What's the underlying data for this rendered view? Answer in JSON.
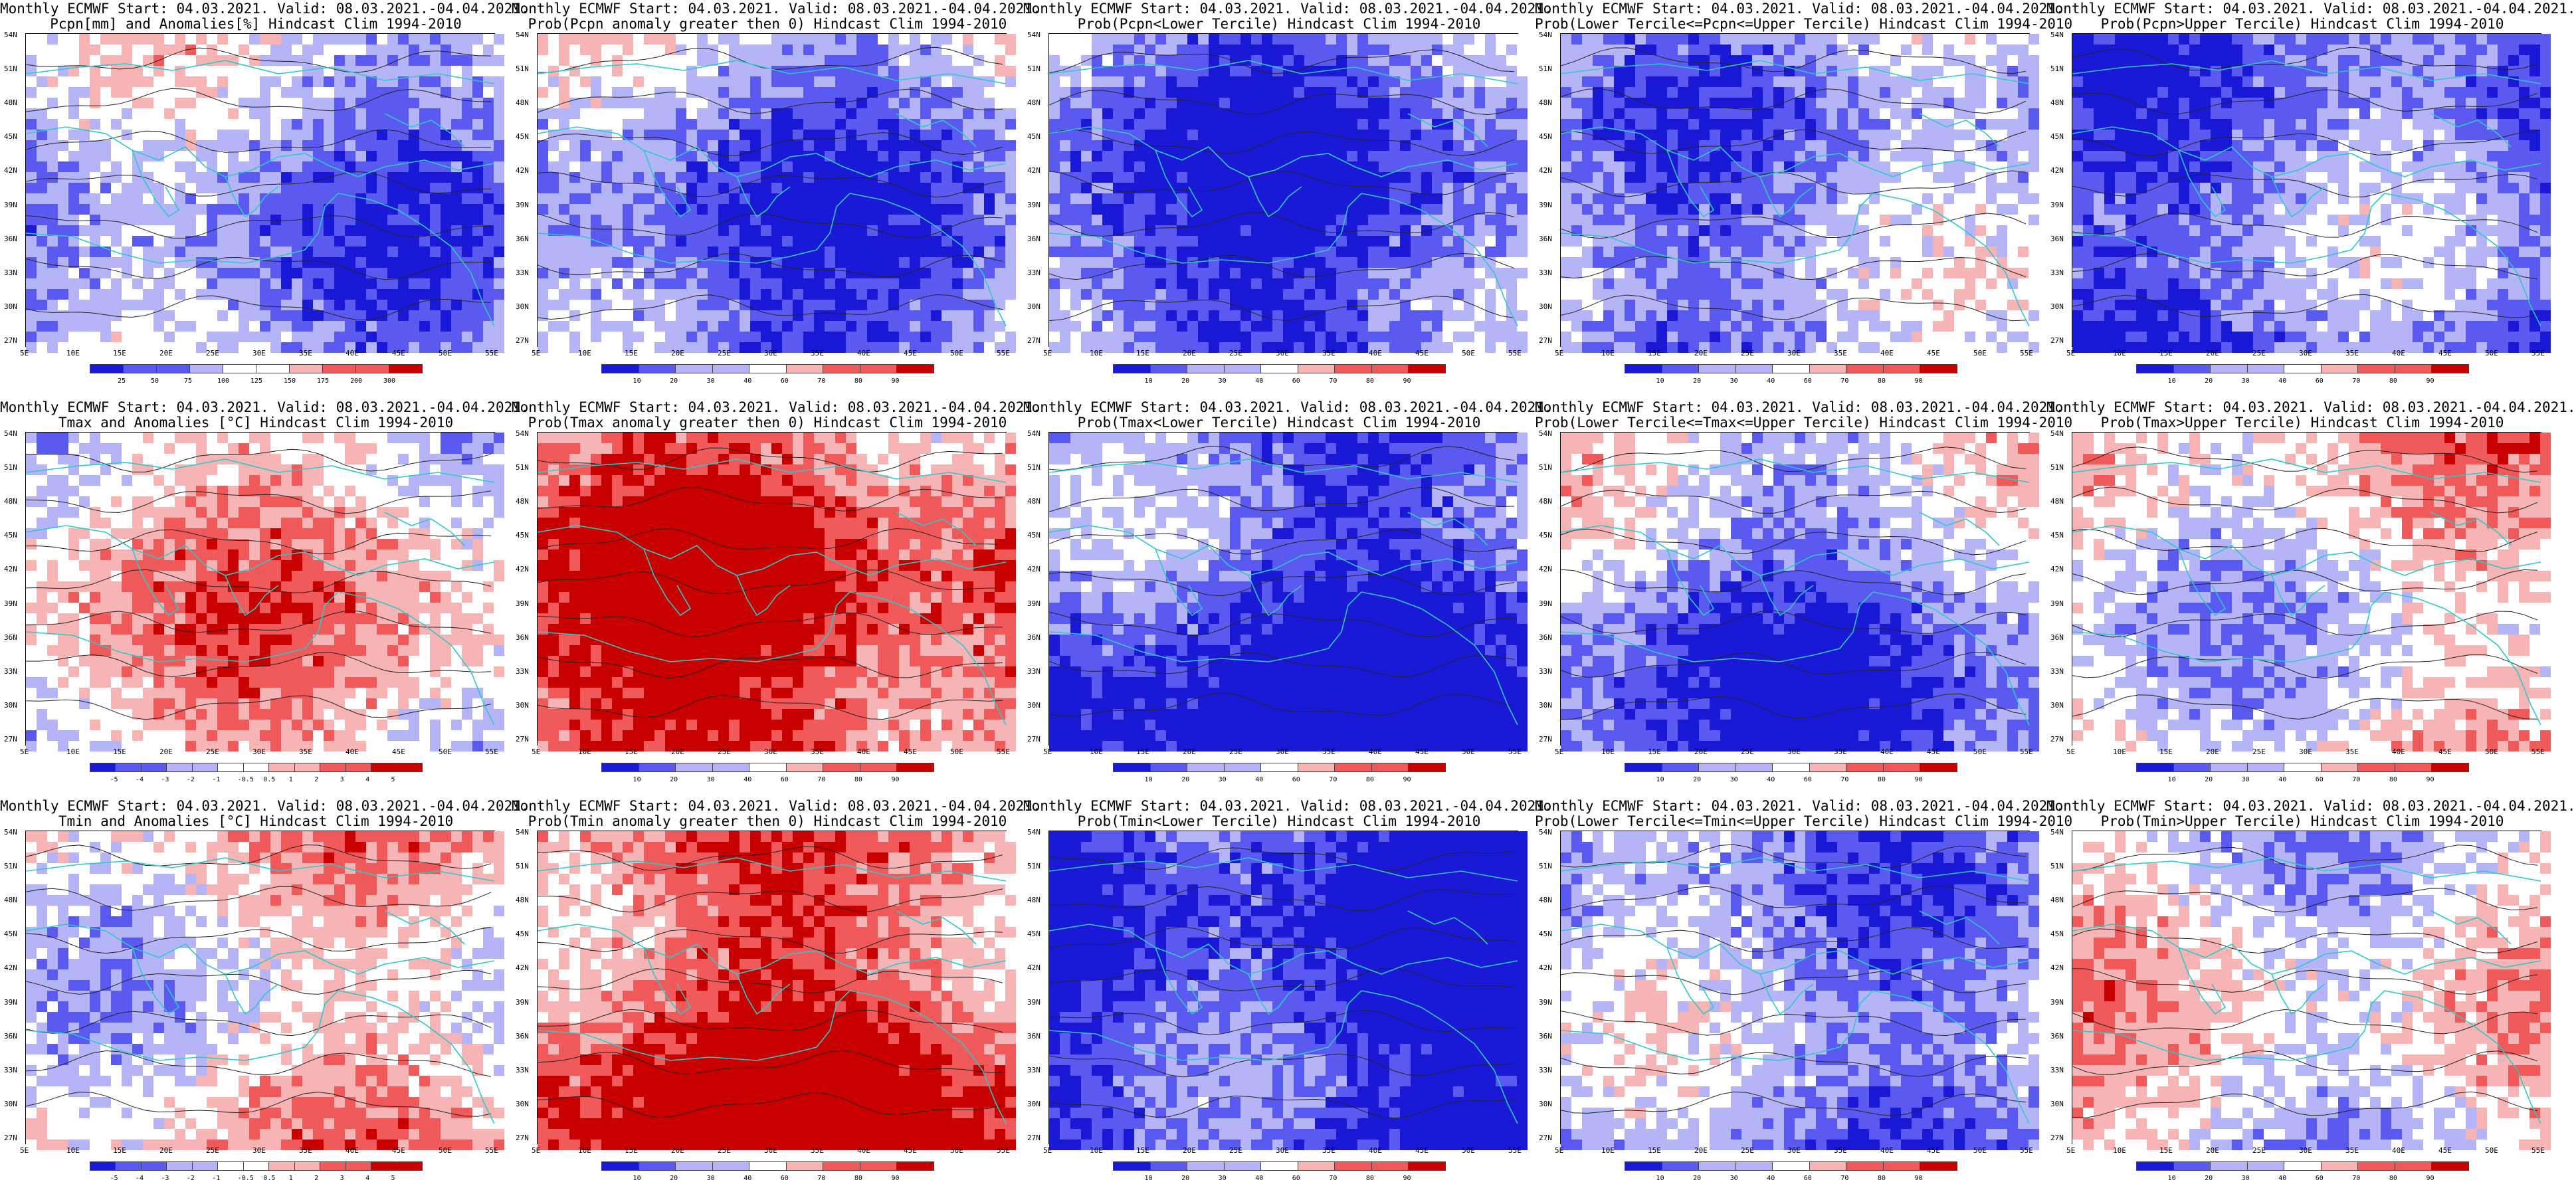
{
  "page_name": "ECMWF monthly forecast panel grid",
  "title_prefix": "Monthly ECMWF Start: 04.03.2021. Valid: 08.03.2021.-04.04.2021.",
  "lat_labels": [
    "54N",
    "51N",
    "48N",
    "45N",
    "42N",
    "39N",
    "36N",
    "33N",
    "30N",
    "27N"
  ],
  "lon_labels": [
    "5E",
    "10E",
    "15E",
    "20E",
    "25E",
    "30E",
    "35E",
    "40E",
    "45E",
    "50E",
    "55E"
  ],
  "prob_ticks": [
    "10",
    "20",
    "30",
    "40",
    "60",
    "70",
    "80",
    "90"
  ],
  "pcpn_ticks": [
    "25",
    "50",
    "75",
    "100",
    "125",
    "150",
    "175",
    "200",
    "300"
  ],
  "temp_ticks": [
    "-5",
    "-4",
    "-3",
    "-2",
    "-1",
    "-0.5",
    "0.5",
    "1",
    "2",
    "3",
    "4",
    "5"
  ],
  "colors": {
    "blue_dark": "#1a1ad6",
    "blue_mid": "#5a5af0",
    "blue_light": "#b4b4f7",
    "white": "#ffffff",
    "red_light": "#f7b4b4",
    "red_mid": "#f05a5a",
    "red_dark": "#c80000",
    "coast": "#2ec8c8",
    "contour": "#222222"
  },
  "panels": [
    {
      "id": "pcpn-anom",
      "line1": "Monthly ECMWF Start: 04.03.2021. Valid: 08.03.2021.-04.04.2021.",
      "line2": "Pcpn[mm] and Anomalies[%] Hindcast Clim 1994-2010",
      "scheme": "pcpn",
      "palette": "anomaly",
      "bias": -0.35
    },
    {
      "id": "pcpn-prob-gt0",
      "line1": "Monthly ECMWF Start: 04.03.2021. Valid: 08.03.2021.-04.04.2021.",
      "line2": "Prob(Pcpn anomaly greater then 0) Hindcast Clim 1994-2010",
      "scheme": "prob",
      "palette": "prob",
      "bias": -0.3
    },
    {
      "id": "pcpn-prob-lower",
      "line1": "Monthly ECMWF Start: 04.03.2021. Valid: 08.03.2021.-04.04.2021.",
      "line2": "Prob(Pcpn<Lower Tercile) Hindcast Clim 1994-2010",
      "scheme": "prob",
      "palette": "prob",
      "bias": -0.45
    },
    {
      "id": "pcpn-prob-middle",
      "line1": "Monthly ECMWF Start: 04.03.2021. Valid: 08.03.2021.-04.04.2021.",
      "line2": "Prob(Lower Tercile<=Pcpn<=Upper Tercile) Hindcast Clim 1994-2010",
      "scheme": "prob",
      "palette": "prob",
      "bias": -0.2
    },
    {
      "id": "pcpn-prob-upper",
      "line1": "Monthly ECMWF Start: 04.03.2021. Valid: 08.03.2021.-04.04.2021.",
      "line2": "Prob(Pcpn>Upper Tercile) Hindcast Clim 1994-2010",
      "scheme": "prob",
      "palette": "prob",
      "bias": -0.4
    },
    {
      "id": "tmax-anom",
      "line1": "Monthly ECMWF Start: 04.03.2021. Valid: 08.03.2021.-04.04.2021.",
      "line2": "Tmax and Anomalies [°C] Hindcast Clim 1994-2010",
      "scheme": "temp",
      "palette": "anomaly",
      "bias": 0.2
    },
    {
      "id": "tmax-prob-gt0",
      "line1": "Monthly ECMWF Start: 04.03.2021. Valid: 08.03.2021.-04.04.2021.",
      "line2": "Prob(Tmax anomaly greater then 0) Hindcast Clim 1994-2010",
      "scheme": "prob",
      "palette": "prob",
      "bias": 0.55
    },
    {
      "id": "tmax-prob-lower",
      "line1": "Monthly ECMWF Start: 04.03.2021. Valid: 08.03.2021.-04.04.2021.",
      "line2": "Prob(Tmax<Lower Tercile) Hindcast Clim 1994-2010",
      "scheme": "prob",
      "palette": "prob",
      "bias": -0.65
    },
    {
      "id": "tmax-prob-middle",
      "line1": "Monthly ECMWF Start: 04.03.2021. Valid: 08.03.2021.-04.04.2021.",
      "line2": "Prob(Lower Tercile<=Tmax<=Upper Tercile) Hindcast Clim 1994-2010",
      "scheme": "prob",
      "palette": "prob",
      "bias": -0.25
    },
    {
      "id": "tmax-prob-upper",
      "line1": "Monthly ECMWF Start: 04.03.2021. Valid: 08.03.2021.-04.04.2021.",
      "line2": "Prob(Tmax>Upper Tercile) Hindcast Clim 1994-2010",
      "scheme": "prob",
      "palette": "prob",
      "bias": 0.05
    },
    {
      "id": "tmin-anom",
      "line1": "Monthly ECMWF Start: 04.03.2021. Valid: 08.03.2021.-04.04.2021.",
      "line2": "Tmin and Anomalies [°C] Hindcast Clim 1994-2010",
      "scheme": "temp",
      "palette": "anomaly",
      "bias": 0.15
    },
    {
      "id": "tmin-prob-gt0",
      "line1": "Monthly ECMWF Start: 04.03.2021. Valid: 08.03.2021.-04.04.2021.",
      "line2": "Prob(Tmin anomaly greater then 0) Hindcast Clim 1994-2010",
      "scheme": "prob",
      "palette": "prob",
      "bias": 0.6
    },
    {
      "id": "tmin-prob-lower",
      "line1": "Monthly ECMWF Start: 04.03.2021. Valid: 08.03.2021.-04.04.2021.",
      "line2": "Prob(Tmin<Lower Tercile) Hindcast Clim 1994-2010",
      "scheme": "prob",
      "palette": "prob",
      "bias": -0.7
    },
    {
      "id": "tmin-prob-middle",
      "line1": "Monthly ECMWF Start: 04.03.2021. Valid: 08.03.2021.-04.04.2021.",
      "line2": "Prob(Lower Tercile<=Tmin<=Upper Tercile) Hindcast Clim 1994-2010",
      "scheme": "prob",
      "palette": "prob",
      "bias": -0.25
    },
    {
      "id": "tmin-prob-upper",
      "line1": "Monthly ECMWF Start: 04.03.2021. Valid: 08.03.2021.-04.04.2021.",
      "line2": "Prob(Tmin>Upper Tercile) Hindcast Clim 1994-2010",
      "scheme": "prob",
      "palette": "prob",
      "bias": 0.0
    }
  ]
}
